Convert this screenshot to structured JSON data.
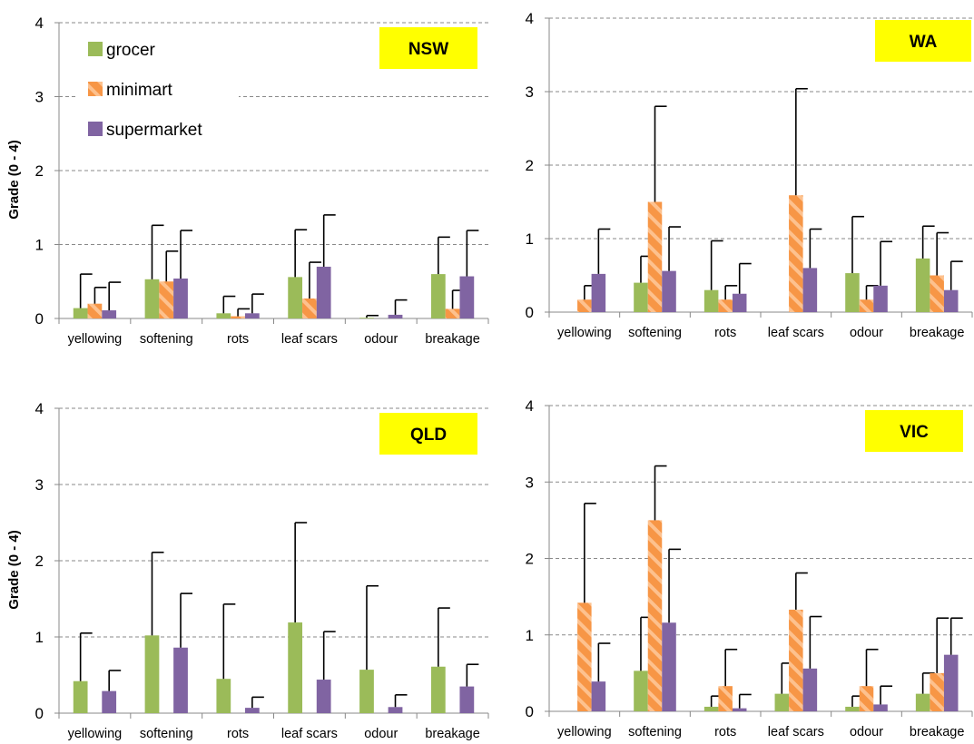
{
  "colors": {
    "grocer": "#9bbb59",
    "minimart": "#f79646",
    "minimart_stripe": "#fdc18e",
    "supermarket": "#8064a2",
    "grid": "#8a8a8a",
    "region_box": "#ffff00"
  },
  "legend": {
    "items": [
      {
        "key": "grocer",
        "label": "grocer"
      },
      {
        "key": "minimart",
        "label": "minimart"
      },
      {
        "key": "supermarket",
        "label": "supermarket"
      }
    ]
  },
  "chart_data": [
    {
      "type": "bar",
      "region": "NSW",
      "ylabel": "Grade (0 - 4)",
      "ylim": [
        0,
        4
      ],
      "yticks": [
        "0",
        "1",
        "2",
        "3",
        "4"
      ],
      "grid": true,
      "legend_shown": true,
      "categories": [
        "yellowing",
        "softening",
        "rots",
        "leaf scars",
        "odour",
        "breakage"
      ],
      "series": [
        {
          "name": "grocer",
          "values": [
            0.14,
            0.53,
            0.07,
            0.56,
            0.01,
            0.6
          ],
          "errors": [
            0.6,
            1.26,
            0.3,
            1.2,
            0.04,
            1.1
          ]
        },
        {
          "name": "minimart",
          "values": [
            0.2,
            0.5,
            0.03,
            0.27,
            0.0,
            0.13
          ],
          "errors": [
            0.42,
            0.91,
            0.13,
            0.76,
            0.0,
            0.38
          ]
        },
        {
          "name": "supermarket",
          "values": [
            0.11,
            0.54,
            0.07,
            0.7,
            0.05,
            0.57
          ],
          "errors": [
            0.49,
            1.19,
            0.33,
            1.4,
            0.25,
            1.19
          ]
        }
      ]
    },
    {
      "type": "bar",
      "region": "WA",
      "ylabel": "",
      "ylim": [
        0,
        4
      ],
      "yticks": [
        "0",
        "1",
        "2",
        "3",
        "4"
      ],
      "grid": true,
      "legend_shown": false,
      "categories": [
        "yellowing",
        "softening",
        "rots",
        "leaf scars",
        "odour",
        "breakage"
      ],
      "series": [
        {
          "name": "grocer",
          "values": [
            0.0,
            0.4,
            0.3,
            0.0,
            0.53,
            0.73
          ],
          "errors": [
            0.0,
            0.76,
            0.97,
            0.0,
            1.3,
            1.17
          ]
        },
        {
          "name": "minimart",
          "values": [
            0.17,
            1.5,
            0.17,
            1.59,
            0.17,
            0.5
          ],
          "errors": [
            0.36,
            2.8,
            0.36,
            3.04,
            0.36,
            1.08
          ]
        },
        {
          "name": "supermarket",
          "values": [
            0.52,
            0.56,
            0.25,
            0.6,
            0.36,
            0.3
          ],
          "errors": [
            1.13,
            1.16,
            0.66,
            1.13,
            0.96,
            0.69
          ]
        }
      ]
    },
    {
      "type": "bar",
      "region": "QLD",
      "ylabel": "Grade (0 - 4)",
      "ylim": [
        0,
        4
      ],
      "yticks": [
        "0",
        "1",
        "2",
        "3",
        "4"
      ],
      "grid": true,
      "legend_shown": false,
      "categories": [
        "yellowing",
        "softening",
        "rots",
        "leaf scars",
        "odour",
        "breakage"
      ],
      "series": [
        {
          "name": "grocer",
          "values": [
            0.42,
            1.02,
            0.45,
            1.19,
            0.57,
            0.61
          ],
          "errors": [
            1.05,
            2.11,
            1.43,
            2.5,
            1.67,
            1.38
          ]
        },
        {
          "name": "minimart",
          "values": [
            0,
            0,
            0,
            0,
            0,
            0
          ],
          "errors": [
            0,
            0,
            0,
            0,
            0,
            0
          ]
        },
        {
          "name": "supermarket",
          "values": [
            0.29,
            0.86,
            0.07,
            0.44,
            0.08,
            0.35
          ],
          "errors": [
            0.56,
            1.57,
            0.21,
            1.07,
            0.24,
            0.64
          ]
        }
      ]
    },
    {
      "type": "bar",
      "region": "VIC",
      "ylabel": "",
      "ylim": [
        0,
        4
      ],
      "yticks": [
        "0",
        "1",
        "2",
        "3",
        "4"
      ],
      "grid": true,
      "legend_shown": false,
      "categories": [
        "yellowing",
        "softening",
        "rots",
        "leaf scars",
        "odour",
        "breakage"
      ],
      "series": [
        {
          "name": "grocer",
          "values": [
            0.0,
            0.53,
            0.06,
            0.23,
            0.06,
            0.23
          ],
          "errors": [
            0.0,
            1.23,
            0.2,
            0.63,
            0.2,
            0.5
          ]
        },
        {
          "name": "minimart",
          "values": [
            1.42,
            2.5,
            0.33,
            1.33,
            0.33,
            0.5
          ],
          "errors": [
            2.72,
            3.21,
            0.81,
            1.81,
            0.81,
            1.22
          ]
        },
        {
          "name": "supermarket",
          "values": [
            0.39,
            1.16,
            0.04,
            0.56,
            0.09,
            0.74
          ],
          "errors": [
            0.89,
            2.12,
            0.22,
            1.24,
            0.33,
            1.22
          ]
        }
      ]
    }
  ]
}
